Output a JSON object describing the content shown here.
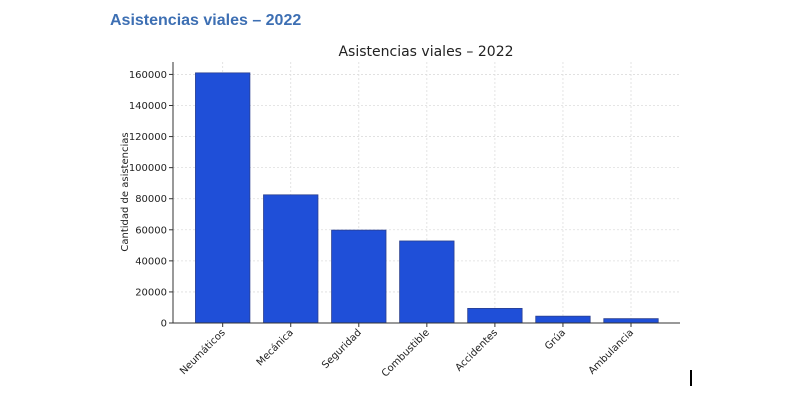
{
  "document": {
    "heading": "Asistencias viales – 2022"
  },
  "chart_data": {
    "type": "bar",
    "title": "Asistencias viales – 2022",
    "xlabel": "",
    "ylabel": "Cantidad de asistencias",
    "categories": [
      "Neumáticos",
      "Mecánica",
      "Seguridad",
      "Combustible",
      "Accidentes",
      "Grúa",
      "Ambulancia"
    ],
    "values": [
      161000,
      82500,
      59800,
      52800,
      9400,
      4400,
      2800
    ],
    "ylim": [
      0,
      168000
    ],
    "yticks": [
      0,
      20000,
      40000,
      60000,
      80000,
      100000,
      120000,
      140000,
      160000
    ],
    "grid": true,
    "bar_color": "#1f4fd8",
    "bar_edge_color": "#2a3f8f"
  }
}
